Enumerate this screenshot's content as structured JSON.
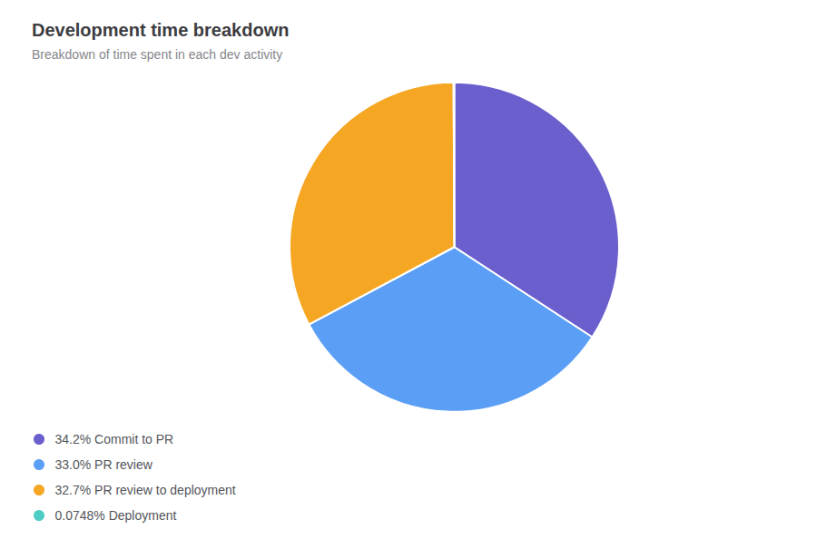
{
  "chart_data": {
    "type": "pie",
    "title": "Development time breakdown",
    "subtitle": "Breakdown of time spent in each dev activity",
    "categories": [
      "34.2% Commit to PR",
      "33.0% PR review",
      "32.7% PR review to deployment",
      "0.0748% Deployment"
    ],
    "values": [
      34.2,
      33.0,
      32.7,
      0.0748
    ],
    "colors": [
      "#6B5ECD",
      "#5B9EF5",
      "#F5A623",
      "#4ECDC4"
    ],
    "legend": "bottom-left"
  }
}
